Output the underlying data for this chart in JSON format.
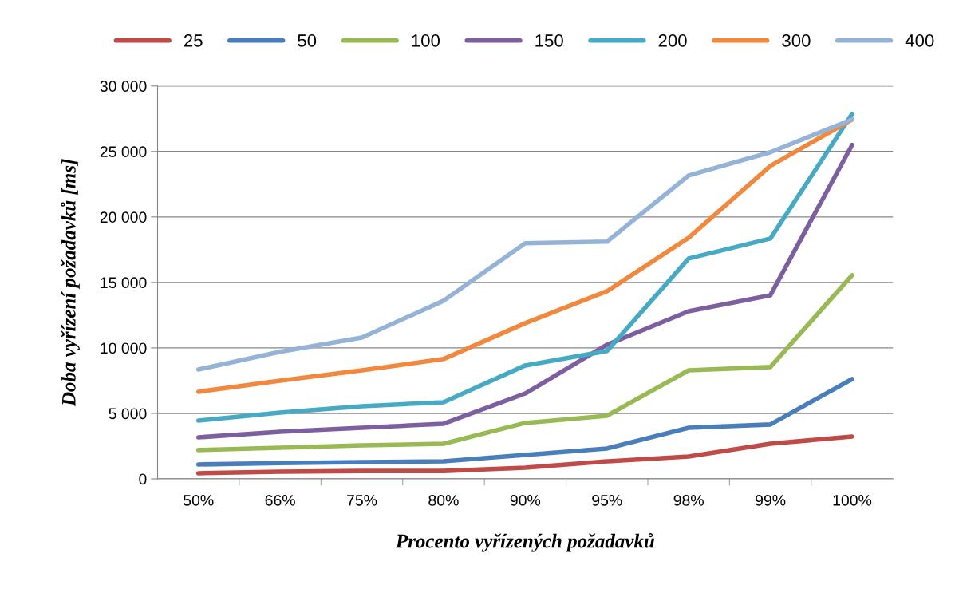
{
  "chart_data": {
    "type": "line",
    "xlabel": "Procento vyřízených požadavků",
    "ylabel": "Doba vyřízení požadavků [ms]",
    "categories": [
      "50%",
      "66%",
      "75%",
      "80%",
      "90%",
      "95%",
      "98%",
      "99%",
      "100%"
    ],
    "series": [
      {
        "name": "25",
        "color": "#be4b48",
        "values": [
          430,
          550,
          600,
          600,
          850,
          1340,
          1700,
          2680,
          3230
        ]
      },
      {
        "name": "50",
        "color": "#4a7ebb",
        "values": [
          1100,
          1200,
          1280,
          1340,
          1830,
          2320,
          3900,
          4150,
          7620
        ]
      },
      {
        "name": "100",
        "color": "#98b954",
        "values": [
          2200,
          2380,
          2560,
          2680,
          4270,
          4820,
          8290,
          8540,
          15550
        ]
      },
      {
        "name": "150",
        "color": "#7d5fa0",
        "values": [
          3170,
          3600,
          3900,
          4210,
          6520,
          10240,
          12800,
          14020,
          25490
        ]
      },
      {
        "name": "200",
        "color": "#46aac5",
        "values": [
          4450,
          5060,
          5550,
          5850,
          8660,
          9760,
          16830,
          18350,
          27870
        ]
      },
      {
        "name": "300",
        "color": "#f0883e",
        "values": [
          6650,
          7500,
          8290,
          9150,
          11890,
          14330,
          18410,
          23900,
          27440
        ]
      },
      {
        "name": "400",
        "color": "#95b3d7",
        "values": [
          8350,
          9700,
          10790,
          13600,
          17990,
          18110,
          23170,
          24940,
          27440
        ]
      }
    ],
    "ylim": [
      0,
      30000
    ],
    "yticks": [
      0,
      {
        "value": 5000,
        "label": "5 000"
      },
      {
        "value": 10000,
        "label": "10 000"
      },
      {
        "value": 15000,
        "label": "15 000"
      },
      {
        "value": 20000,
        "label": "20 000"
      },
      {
        "value": 25000,
        "label": "25 000"
      },
      {
        "value": 30000,
        "label": "30 000"
      }
    ],
    "grid": "y",
    "legend": "top",
    "marker": "none",
    "line_style": "solid"
  }
}
